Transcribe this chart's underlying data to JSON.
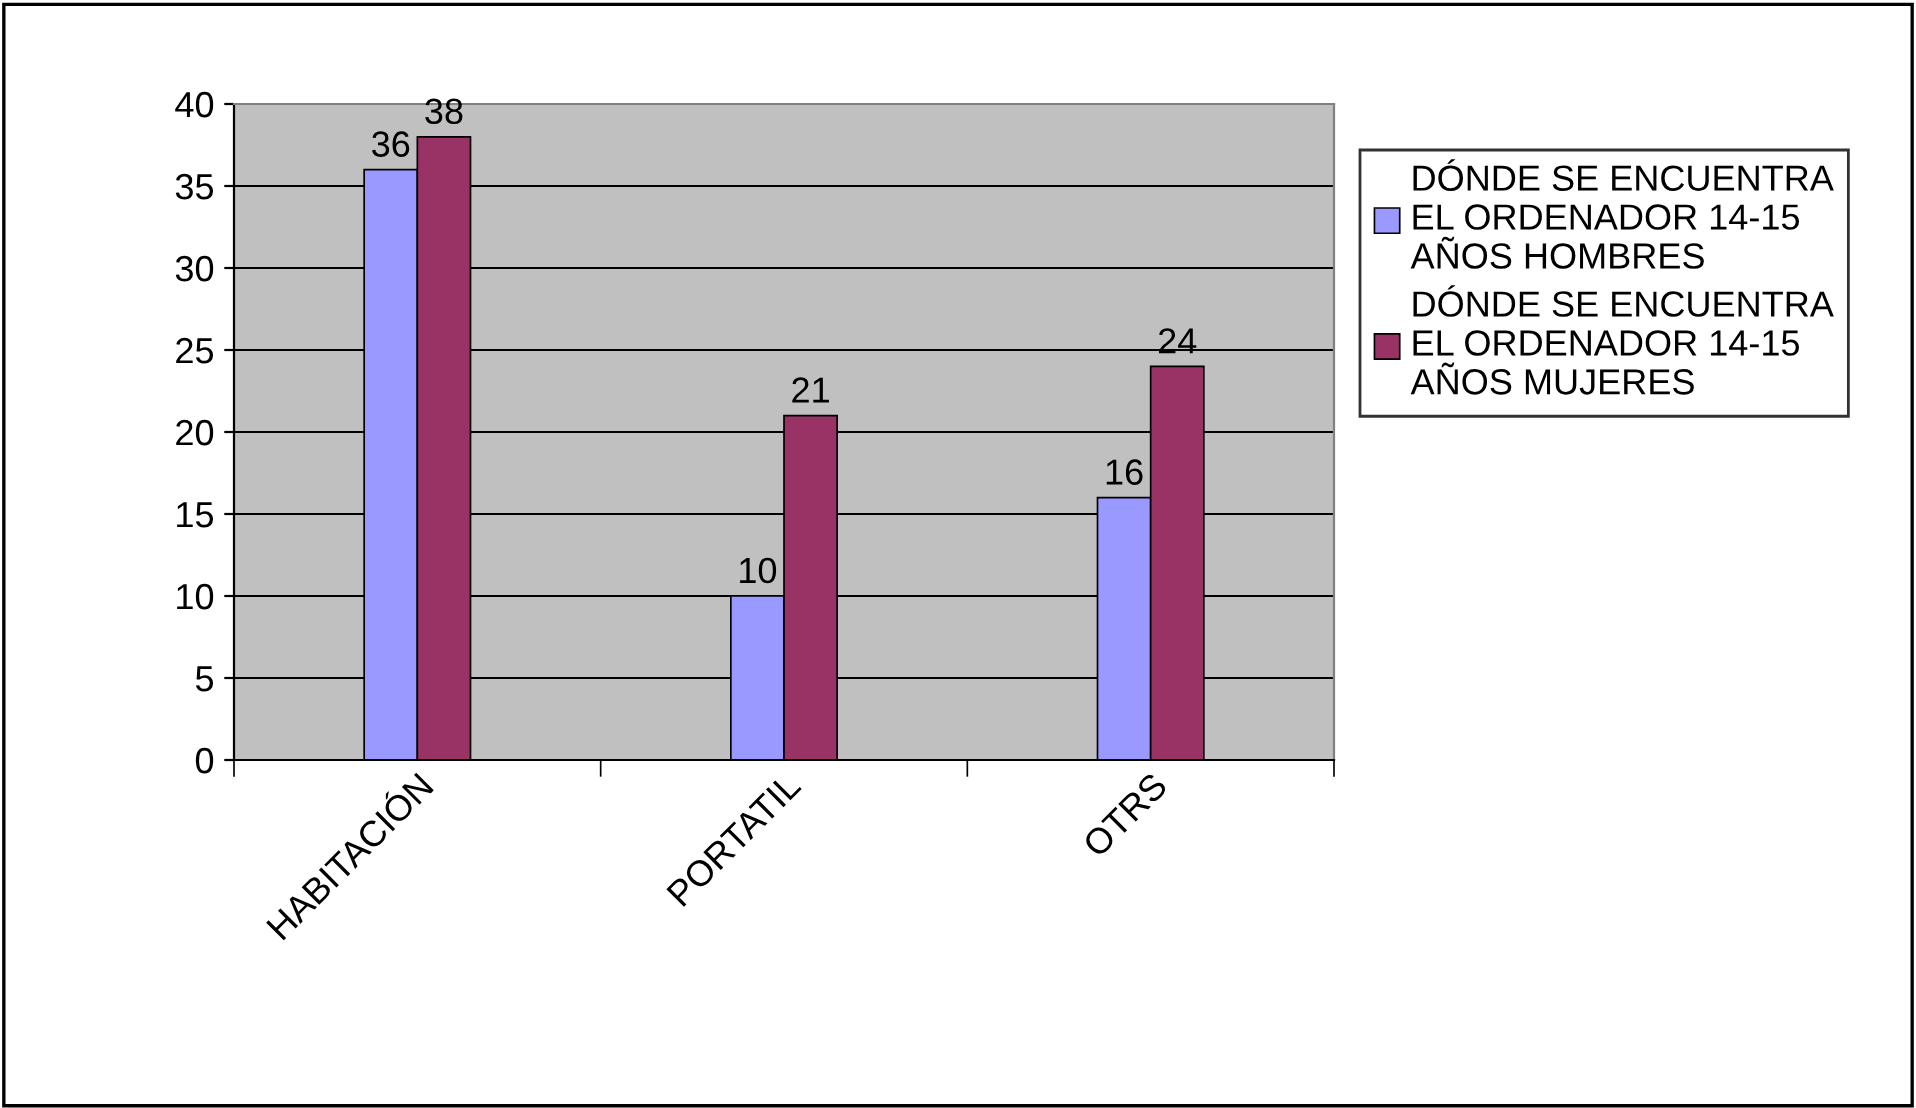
{
  "chart_data": {
    "type": "bar",
    "categories": [
      "HABITACIÓN",
      "PORTATIL",
      "OTRS"
    ],
    "series": [
      {
        "name": "DÓNDE SE ENCUENTRA EL ORDENADOR 14-15 AÑOS HOMBRES",
        "color": "#9999ff",
        "values": [
          36,
          10,
          16
        ]
      },
      {
        "name": "DÓNDE SE ENCUENTRA EL ORDENADOR 14-15 AÑOS MUJERES",
        "color": "#993366",
        "values": [
          38,
          21,
          24
        ]
      }
    ],
    "ylim": [
      0,
      40
    ],
    "yticks": [
      0,
      5,
      10,
      15,
      20,
      25,
      30,
      35,
      40
    ],
    "grid": "y",
    "legend": "right",
    "data_labels": true
  }
}
